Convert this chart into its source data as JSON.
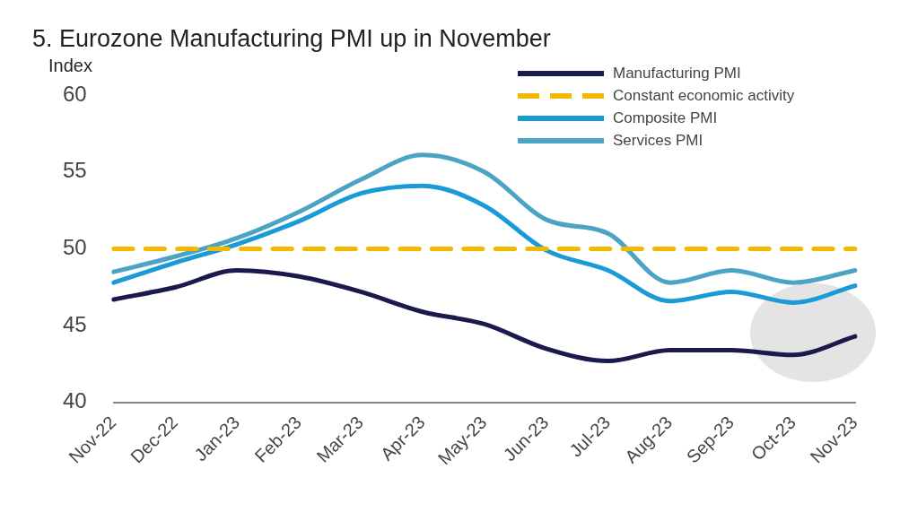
{
  "chart_data": {
    "type": "line",
    "title": "5. Eurozone Manufacturing PMI up in November",
    "ylabel": "Index",
    "categories": [
      "Nov-22",
      "Dec-22",
      "Jan-23",
      "Feb-23",
      "Mar-23",
      "Apr-23",
      "May-23",
      "Jun-23",
      "Jul-23",
      "Aug-23",
      "Sep-23",
      "Oct-23",
      "Nov-23"
    ],
    "series": [
      {
        "name": "Manufacturing PMI",
        "color": "#1b1a4f",
        "values": [
          46.7,
          47.5,
          48.6,
          48.2,
          47.2,
          45.9,
          45.1,
          43.5,
          42.7,
          43.4,
          43.4,
          43.1,
          44.3
        ]
      },
      {
        "name": "Constant economic activity",
        "color": "#f5b800",
        "line_style": "dashed",
        "values": [
          50,
          50,
          50,
          50,
          50,
          50,
          50,
          50,
          50,
          50,
          50,
          50,
          50
        ]
      },
      {
        "name": "Composite PMI",
        "color": "#1a9ad6",
        "values": [
          47.8,
          49.1,
          50.3,
          51.8,
          53.6,
          54.1,
          52.8,
          49.9,
          48.6,
          46.6,
          47.2,
          46.5,
          47.6
        ]
      },
      {
        "name": "Services PMI",
        "color": "#4ba4c4",
        "values": [
          48.5,
          49.5,
          50.7,
          52.4,
          54.5,
          56.1,
          55.0,
          51.9,
          51.0,
          47.8,
          48.6,
          47.8,
          48.6
        ]
      }
    ],
    "ylim": [
      40,
      60
    ],
    "yticks": [
      40,
      45,
      50,
      55,
      60
    ],
    "grid": false,
    "legend": "top right",
    "line_style": "solid",
    "marker": "none"
  }
}
